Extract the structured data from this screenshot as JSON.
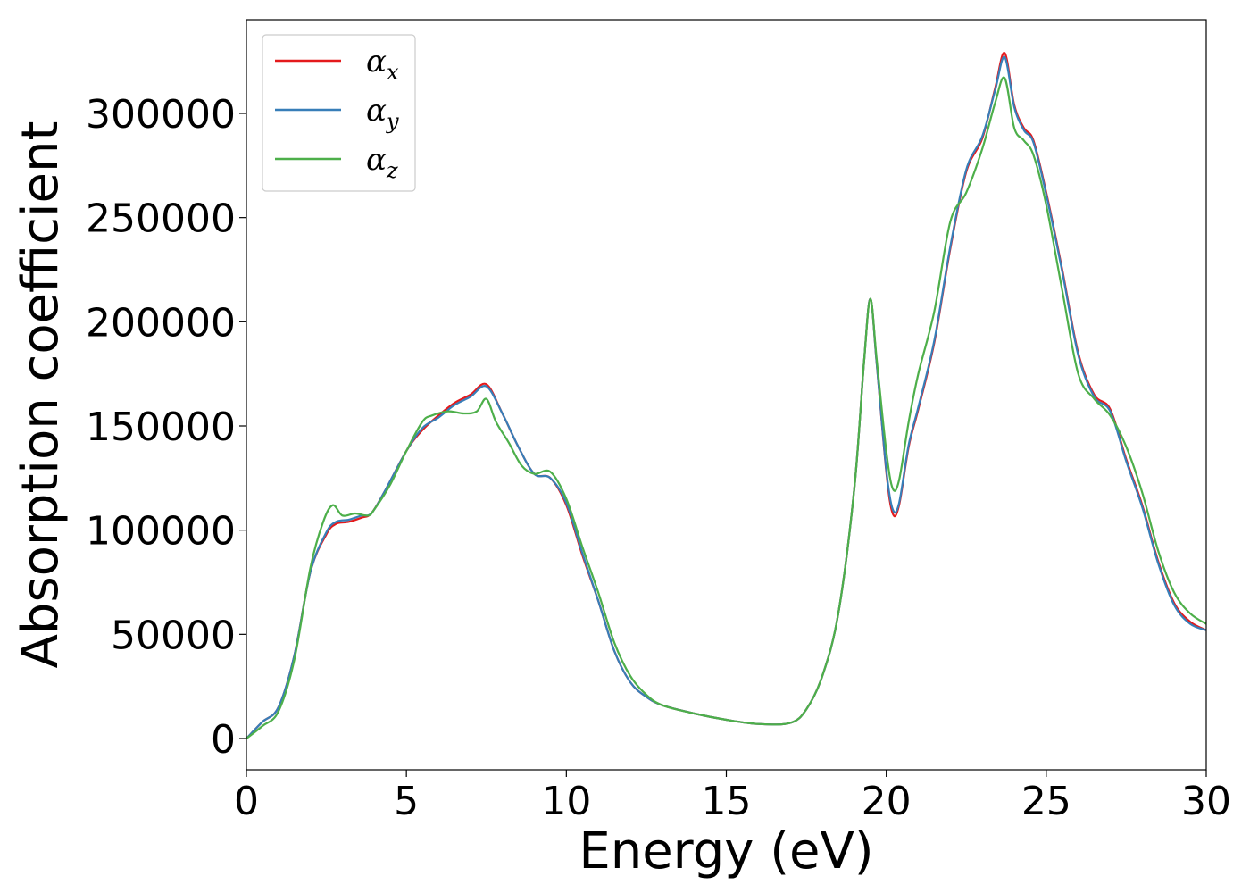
{
  "chart_data": {
    "type": "line",
    "title": "",
    "xlabel": "Energy (eV)",
    "ylabel": "Absorption coefficient",
    "xlim": [
      0,
      30
    ],
    "ylim": [
      -15000,
      345000
    ],
    "xticks": [
      "0",
      "5",
      "10",
      "15",
      "20",
      "25",
      "30"
    ],
    "yticks": [
      "0",
      "50000",
      "100000",
      "150000",
      "200000",
      "250000",
      "300000"
    ],
    "grid": false,
    "legend_position": "top-left",
    "series": [
      {
        "name": "α_x",
        "legend_symbol": "α",
        "legend_sub": "x",
        "color": "#e41a1c",
        "x": [
          0,
          0.5,
          1.0,
          1.5,
          2.0,
          2.5,
          2.8,
          3.2,
          3.6,
          3.9,
          4.3,
          5.0,
          5.5,
          6.0,
          6.5,
          7.0,
          7.5,
          8.0,
          8.5,
          9.0,
          9.5,
          10.0,
          10.5,
          11.0,
          11.5,
          12.0,
          12.5,
          13.0,
          14.0,
          15.0,
          16.0,
          17.0,
          17.5,
          18.0,
          18.5,
          19.0,
          19.3,
          19.5,
          19.7,
          20.0,
          20.2,
          20.4,
          20.7,
          21.0,
          21.5,
          22.0,
          22.5,
          23.0,
          23.4,
          23.7,
          24.0,
          24.3,
          24.6,
          25.0,
          25.5,
          26.0,
          26.5,
          27.0,
          27.5,
          28.0,
          28.5,
          29.0,
          29.5,
          30.0
        ],
        "y": [
          0,
          8000,
          15000,
          40000,
          80000,
          98000,
          103000,
          104000,
          106000,
          108000,
          118000,
          138000,
          148000,
          155000,
          161000,
          165000,
          170000,
          156000,
          140000,
          127000,
          125000,
          112000,
          88000,
          66000,
          42000,
          27000,
          20000,
          16000,
          12000,
          9000,
          7000,
          7500,
          14000,
          30000,
          60000,
          120000,
          180000,
          211000,
          180000,
          128000,
          108000,
          112000,
          140000,
          158000,
          190000,
          235000,
          272000,
          288000,
          312000,
          329000,
          304000,
          293000,
          287000,
          262000,
          225000,
          185000,
          165000,
          158000,
          134000,
          112000,
          85000,
          65000,
          56000,
          52000
        ]
      },
      {
        "name": "α_y",
        "legend_symbol": "α",
        "legend_sub": "y",
        "color": "#377eb8",
        "x": [
          0,
          0.5,
          1.0,
          1.5,
          2.0,
          2.5,
          2.8,
          3.2,
          3.6,
          3.9,
          4.3,
          5.0,
          5.5,
          6.0,
          6.5,
          7.0,
          7.5,
          8.0,
          8.5,
          9.0,
          9.5,
          10.0,
          10.5,
          11.0,
          11.5,
          12.0,
          12.5,
          13.0,
          14.0,
          15.0,
          16.0,
          17.0,
          17.5,
          18.0,
          18.5,
          19.0,
          19.3,
          19.5,
          19.7,
          20.0,
          20.2,
          20.4,
          20.7,
          21.0,
          21.5,
          22.0,
          22.5,
          23.0,
          23.4,
          23.7,
          24.0,
          24.3,
          24.6,
          25.0,
          25.5,
          26.0,
          26.5,
          27.0,
          27.5,
          28.0,
          28.5,
          29.0,
          29.5,
          30.0
        ],
        "y": [
          0,
          8000,
          15000,
          40000,
          80000,
          99000,
          104000,
          105000,
          107000,
          108000,
          118000,
          138000,
          149000,
          154000,
          160000,
          164000,
          169000,
          156000,
          140000,
          127000,
          125000,
          113000,
          89000,
          66000,
          42000,
          27000,
          20000,
          16000,
          12000,
          9000,
          7000,
          7500,
          14000,
          30000,
          60000,
          120000,
          180000,
          211000,
          180000,
          129000,
          110000,
          113000,
          141000,
          159000,
          191000,
          236000,
          273000,
          289000,
          311000,
          327000,
          303000,
          292000,
          286000,
          261000,
          224000,
          184000,
          164000,
          157000,
          133000,
          111000,
          84000,
          64000,
          55000,
          52000
        ]
      },
      {
        "name": "α_z",
        "legend_symbol": "α",
        "legend_sub": "z",
        "color": "#4daf4a",
        "x": [
          0,
          0.5,
          1.0,
          1.5,
          2.0,
          2.4,
          2.7,
          3.0,
          3.4,
          3.8,
          4.0,
          4.5,
          5.0,
          5.5,
          5.8,
          6.3,
          6.8,
          7.2,
          7.5,
          7.8,
          8.2,
          8.6,
          9.0,
          9.5,
          10.0,
          10.5,
          11.0,
          11.5,
          12.0,
          12.5,
          13.0,
          14.0,
          15.0,
          16.0,
          17.0,
          17.5,
          18.0,
          18.5,
          19.0,
          19.3,
          19.5,
          19.7,
          20.0,
          20.2,
          20.4,
          20.7,
          21.0,
          21.5,
          22.0,
          22.5,
          23.0,
          23.4,
          23.7,
          24.0,
          24.3,
          24.6,
          25.0,
          25.5,
          26.0,
          26.5,
          27.0,
          27.5,
          28.0,
          28.5,
          29.0,
          29.5,
          30.0
        ],
        "y": [
          0,
          6000,
          13000,
          38000,
          82000,
          104000,
          112000,
          107000,
          108000,
          107000,
          110000,
          122000,
          138000,
          152000,
          155000,
          157000,
          156000,
          157000,
          163000,
          152000,
          142000,
          131000,
          127000,
          128000,
          115000,
          92000,
          70000,
          46000,
          30000,
          21000,
          16000,
          12000,
          9000,
          7000,
          7500,
          14000,
          30000,
          60000,
          120000,
          180000,
          211000,
          182000,
          138000,
          120000,
          124000,
          152000,
          175000,
          205000,
          248000,
          262000,
          283000,
          305000,
          317000,
          293000,
          287000,
          280000,
          256000,
          215000,
          175000,
          163000,
          155000,
          140000,
          118000,
          90000,
          70000,
          60000,
          55000
        ]
      }
    ]
  }
}
